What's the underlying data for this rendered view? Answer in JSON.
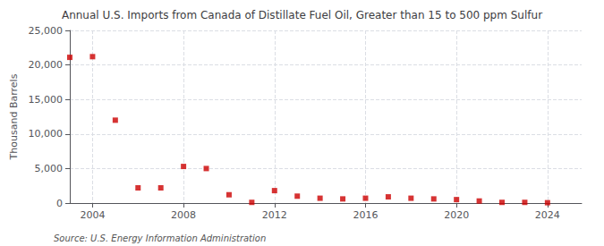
{
  "chart_data": {
    "type": "scatter",
    "title": "Annual U.S. Imports from Canada of Distillate Fuel Oil, Greater than 15 to 500 ppm Sulfur",
    "y_label": "Thousand Barrels",
    "annotations": [
      "Source: U.S. Energy Information Administration"
    ],
    "x": [
      2003,
      2004,
      2005,
      2006,
      2007,
      2008,
      2009,
      2010,
      2011,
      2012,
      2013,
      2014,
      2015,
      2016,
      2017,
      2018,
      2019,
      2020,
      2021,
      2022,
      2023,
      2024
    ],
    "values": [
      21100,
      21200,
      12000,
      2200,
      2200,
      5300,
      5000,
      1200,
      100,
      1800,
      1000,
      700,
      600,
      700,
      900,
      700,
      600,
      500,
      300,
      100,
      100,
      50
    ],
    "color": "#cc0000",
    "marker": "square",
    "xlim": [
      2003,
      2025.5
    ],
    "xticks": [
      2004,
      2008,
      2012,
      2016,
      2020,
      2024
    ],
    "ylim": [
      0,
      25000
    ],
    "yticks": [
      0,
      {
        "value": 5000,
        "label": "5,000"
      },
      {
        "value": 10000,
        "label": "10,000"
      },
      {
        "value": 15000,
        "label": "15,000"
      },
      {
        "value": 20000,
        "label": "20,000"
      },
      {
        "value": 25000,
        "label": "25,000"
      }
    ],
    "grid": true
  }
}
